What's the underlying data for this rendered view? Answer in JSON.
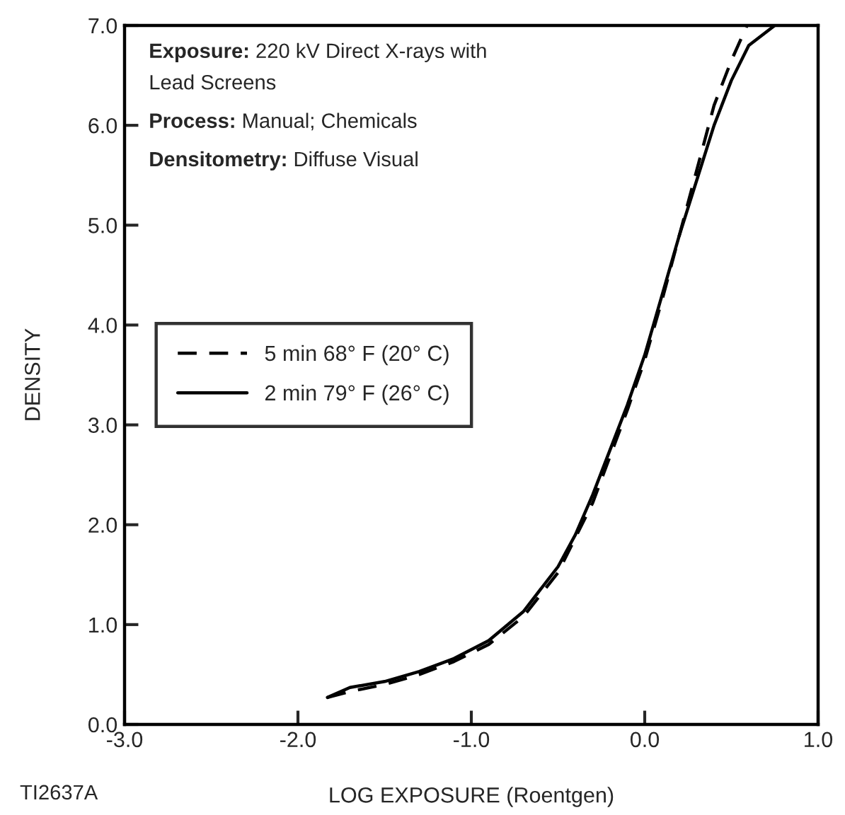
{
  "chart_data": {
    "type": "line",
    "xlabel": "LOG EXPOSURE (Roentgen)",
    "ylabel": "DENSITY",
    "xlim": [
      -3.0,
      1.0
    ],
    "ylim": [
      0.0,
      7.0
    ],
    "xticks": [
      {
        "value": -3,
        "label": "-3.0"
      },
      {
        "value": -2,
        "label": "-2.0"
      },
      {
        "value": -1,
        "label": "-1.0"
      },
      {
        "value": 0,
        "label": "0.0"
      },
      {
        "value": 1,
        "label": "1.0"
      }
    ],
    "yticks": [
      {
        "value": 0,
        "label": "0.0"
      },
      {
        "value": 1,
        "label": "1.0"
      },
      {
        "value": 2,
        "label": "2.0"
      },
      {
        "value": 3,
        "label": "3.0"
      },
      {
        "value": 4,
        "label": "4.0"
      },
      {
        "value": 5,
        "label": "5.0"
      },
      {
        "value": 6,
        "label": "6.0"
      },
      {
        "value": 7,
        "label": "7.0"
      }
    ],
    "grid": false,
    "legend": "center left",
    "marker": "none",
    "series": [
      {
        "name": "5 min 68° F (20° C)",
        "color": "#000000",
        "line_style": "dashed",
        "x": [
          -1.83,
          -1.7,
          -1.5,
          -1.3,
          -1.1,
          -0.9,
          -0.7,
          -0.5,
          -0.3,
          -0.1,
          0.0,
          0.1,
          0.2,
          0.3,
          0.4,
          0.5,
          0.59
        ],
        "values": [
          0.27,
          0.33,
          0.4,
          0.5,
          0.63,
          0.8,
          1.08,
          1.52,
          2.22,
          3.15,
          3.65,
          4.25,
          4.9,
          5.55,
          6.2,
          6.65,
          7.0
        ]
      },
      {
        "name": "2 min 79° F (26° C)",
        "color": "#000000",
        "line_style": "solid",
        "x": [
          -1.83,
          -1.7,
          -1.5,
          -1.3,
          -1.1,
          -0.9,
          -0.7,
          -0.5,
          -0.4,
          -0.3,
          -0.2,
          -0.1,
          0.0,
          0.1,
          0.2,
          0.3,
          0.4,
          0.5,
          0.6,
          0.75
        ],
        "values": [
          0.27,
          0.37,
          0.43,
          0.53,
          0.66,
          0.84,
          1.13,
          1.58,
          1.9,
          2.3,
          2.75,
          3.2,
          3.7,
          4.3,
          4.9,
          5.45,
          6.0,
          6.45,
          6.8,
          7.0
        ]
      }
    ],
    "annotations": [
      "Exposure: 220 kV Direct X-rays with\nLead Screens",
      "Process: Manual; Chemicals",
      "Densitometry: Diffuse Visual",
      "TI2637A"
    ]
  }
}
